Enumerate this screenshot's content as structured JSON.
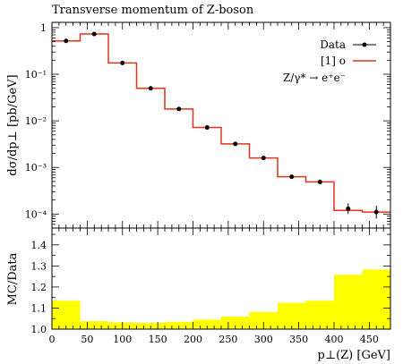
{
  "chart_data": [
    {
      "type": "line",
      "title": "Transverse momentum of Z-boson",
      "ylabel": "dσ/dp⊥ [pb/GeV]",
      "yscale": "log",
      "ylim": [
        5e-05,
        1.3
      ],
      "xlim": [
        0,
        480
      ],
      "ytick_labels": [
        "1",
        "10⁻¹",
        "10⁻²",
        "10⁻³",
        "10⁻⁴"
      ],
      "legend": {
        "placement": "top-right",
        "entries": [
          "Data",
          "[1] o"
        ],
        "process_label": "Z/γ* → e⁺e⁻"
      },
      "bin_edges": [
        0,
        40,
        80,
        120,
        160,
        200,
        240,
        280,
        320,
        360,
        400,
        440,
        480
      ],
      "series": [
        {
          "name": "[1] o",
          "style": "histogram",
          "color": "#e2331b",
          "values": [
            0.52,
            0.73,
            0.175,
            0.05,
            0.018,
            0.0072,
            0.0032,
            0.0016,
            0.00063,
            0.00049,
            0.00012,
            0.00011
          ]
        },
        {
          "name": "Data",
          "style": "points",
          "color": "#000000",
          "x": [
            20,
            60,
            100,
            140,
            180,
            220,
            260,
            300,
            340,
            380,
            420,
            460
          ],
          "values": [
            0.52,
            0.73,
            0.175,
            0.05,
            0.018,
            0.0072,
            0.0032,
            0.0016,
            0.00063,
            0.00049,
            0.00013,
            0.00011
          ],
          "err_low": [
            0,
            0,
            0,
            0,
            0,
            0,
            0,
            0,
            5e-05,
            5e-05,
            3e-05,
            3e-05
          ],
          "err_high": [
            0,
            0,
            0,
            0,
            0,
            0,
            0,
            0,
            5e-05,
            5e-05,
            4e-05,
            4e-05
          ]
        }
      ]
    },
    {
      "type": "bar",
      "ylabel": "MC/Data",
      "xlabel": "p⊥(Z) [GeV]",
      "ylim": [
        1.0,
        1.48
      ],
      "xlim": [
        0,
        480
      ],
      "xticks": [
        0,
        50,
        100,
        150,
        200,
        250,
        300,
        350,
        400,
        450
      ],
      "xtick_labels": [
        "0",
        "50",
        "100",
        "150",
        "200",
        "250",
        "300",
        "350",
        "400",
        "450"
      ],
      "yticks": [
        1.0,
        1.1,
        1.2,
        1.3,
        1.4
      ],
      "ytick_labels": [
        "1.0",
        "1.1",
        "1.2",
        "1.3",
        "1.4"
      ],
      "bin_edges": [
        0,
        40,
        80,
        120,
        160,
        200,
        240,
        280,
        320,
        360,
        400,
        440,
        480
      ],
      "fill_color": "#ffff00",
      "values": [
        1.135,
        1.038,
        1.032,
        1.03,
        1.035,
        1.045,
        1.06,
        1.082,
        1.125,
        1.135,
        1.258,
        1.283
      ]
    }
  ]
}
